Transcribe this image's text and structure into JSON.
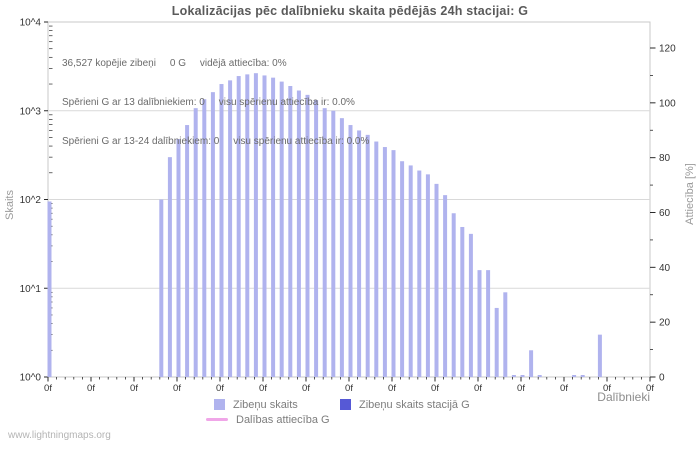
{
  "page": {
    "footer": "www.lightningmaps.org"
  },
  "colors": {
    "bar": "#b0b3ee",
    "station_bar": "#5659d6",
    "ratio_line": "#f0a6e8",
    "grid": "#d9d9d9",
    "border": "#c9c9c9",
    "tick": "#2a2a2a",
    "axis_text": "#333333"
  },
  "chart_data": {
    "type": "bar",
    "title": "Lokalizācijas pēc dalībnieku skaita pēdējās 24h stacijai: G",
    "xlabel": "Dalībnieki",
    "ylabel_left": "Skaits",
    "ylabel_right": "Attiecība [%]",
    "annotation_lines": [
      "36,527 kopējie zibeņi     0 G     vidējā attiecība: 0%",
      "Spērieni G ar 13 dalībniekiem: 0     visu spērienu attiecība ir: 0.0%",
      "Spērieni G ar 13-24 dalībniekiem: 0     visu spērienu attiecība ir: 0.0%"
    ],
    "y_axis_left": {
      "scale": "log",
      "tick_labels": [
        "10^0",
        "10^1",
        "10^2",
        "10^3",
        "10^4"
      ],
      "range_exp": [
        0,
        4
      ]
    },
    "y_axis_right": {
      "labels": [
        0,
        20,
        40,
        60,
        80,
        100,
        120
      ],
      "minor_step": 10,
      "label_step": 20,
      "max_label": 120
    },
    "x_axis": {
      "range": [
        0,
        70
      ],
      "major_step": 5,
      "minor_step": 1,
      "major_tick_label": "0f",
      "major_tick_count": 15
    },
    "grid": "horizontal-log-decades",
    "legend": {
      "position": "bottom-center",
      "items": [
        {
          "label": "Zibeņu skaits",
          "swatch": "square",
          "color_key": "bar"
        },
        {
          "label": "Zibeņu skaits stacijā G",
          "swatch": "square",
          "color_key": "station_bar"
        },
        {
          "label": "Dalības attiecība G",
          "swatch": "line",
          "color_key": "ratio_line"
        }
      ]
    },
    "series": [
      {
        "name": "Zibeņu skaits",
        "type": "bar",
        "x": [
          0,
          13,
          14,
          15,
          16,
          17,
          18,
          19,
          20,
          21,
          22,
          23,
          24,
          25,
          26,
          27,
          28,
          29,
          30,
          31,
          32,
          33,
          34,
          35,
          36,
          37,
          38,
          39,
          40,
          41,
          42,
          43,
          44,
          45,
          46,
          47,
          48,
          49,
          50,
          51,
          52,
          53,
          54,
          55,
          56,
          57,
          61,
          62,
          64
        ],
        "values": [
          95,
          100,
          300,
          480,
          690,
          1070,
          1350,
          1620,
          2000,
          2200,
          2460,
          2570,
          2650,
          2500,
          2360,
          2130,
          1900,
          1690,
          1510,
          1320,
          1070,
          1000,
          825,
          690,
          600,
          535,
          450,
          390,
          360,
          270,
          242,
          212,
          192,
          150,
          112,
          70,
          49,
          41,
          16,
          16,
          6,
          9,
          1,
          1,
          2,
          1,
          1,
          1,
          3
        ]
      },
      {
        "name": "Zibeņu skaits stacijā G",
        "type": "bar",
        "x": [],
        "values": []
      },
      {
        "name": "Dalības attiecība G",
        "type": "line",
        "x": [],
        "values": []
      }
    ]
  }
}
